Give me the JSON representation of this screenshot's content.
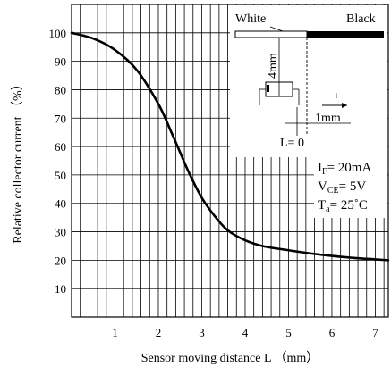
{
  "chart_data": {
    "type": "line",
    "xlabel": "Sensor moving distance L （mm）",
    "ylabel": "Relative collector current （%）",
    "xlim": [
      0,
      7.3
    ],
    "ylim": [
      0,
      110
    ],
    "xticks": [
      1,
      2,
      3,
      4,
      5,
      6,
      7
    ],
    "yticks": [
      10,
      20,
      30,
      40,
      50,
      60,
      70,
      80,
      90,
      100
    ],
    "grid": true,
    "grid_minor_x_step": 0.2,
    "series": [
      {
        "x": [
          0,
          0.5,
          1.0,
          1.5,
          2.0,
          2.3,
          2.5,
          2.7,
          3.0,
          3.3,
          3.6,
          4.0,
          4.4,
          5.0,
          5.5,
          6.0,
          6.5,
          7.0,
          7.3
        ],
        "y": [
          100,
          98,
          94,
          87,
          75,
          65,
          58,
          51,
          42,
          35.5,
          30.5,
          27,
          25,
          23.5,
          22.4,
          21.5,
          20.8,
          20.3,
          20
        ]
      }
    ]
  },
  "inset": {
    "white_label": "White",
    "black_label": "Black",
    "dist_vertical_label": "4mm",
    "dist_horizontal_label": "1mm",
    "plus_label": "+",
    "l_zero_label": "L= 0"
  },
  "conditions": {
    "if_main": "I",
    "if_sub": "F",
    "if_value": "= 20mA",
    "vce_main": "V",
    "vce_sub": "CE",
    "vce_value": "= 5V",
    "ta_main": "T",
    "ta_sub": "a",
    "ta_value": "= 25˚C"
  }
}
